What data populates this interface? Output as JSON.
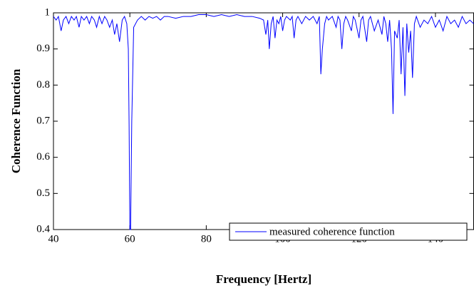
{
  "chart_data": {
    "type": "line",
    "xlabel": "Frequency [Hertz]",
    "ylabel": "Coherence Function",
    "xlim": [
      40,
      150
    ],
    "xticks": [
      40,
      60,
      80,
      100,
      120,
      140
    ],
    "ylim": [
      0.4,
      1
    ],
    "yticks": [
      0.4,
      0.5,
      0.6,
      0.7,
      0.8,
      0.9,
      1
    ],
    "grid": false,
    "legend": "lower right",
    "x": [
      40,
      40.7,
      41.3,
      42,
      42.6,
      43.3,
      44,
      44.7,
      45.4,
      46,
      46.7,
      47.3,
      48,
      48.7,
      49.4,
      50,
      50.7,
      51.3,
      52,
      52.7,
      53.4,
      54,
      54.7,
      55.4,
      56,
      56.6,
      57.3,
      58,
      58.6,
      59.2,
      59.6,
      59.8,
      60,
      60.2,
      60.5,
      61,
      62,
      63,
      64,
      65,
      66,
      67,
      68,
      69,
      70,
      72,
      74,
      76,
      78,
      80,
      82,
      84,
      86,
      88,
      90,
      92,
      94,
      95,
      95.6,
      96.1,
      96.5,
      97,
      97.5,
      98,
      98.5,
      99,
      99.5,
      100,
      100.5,
      101,
      102,
      102.5,
      103,
      103.5,
      104,
      105,
      106,
      107,
      108,
      109,
      109.6,
      110,
      110.4,
      111,
      111.5,
      112,
      113,
      114,
      114.5,
      115,
      115.5,
      116,
      116.5,
      117,
      118,
      118.5,
      119,
      120,
      120.5,
      121,
      122,
      122.5,
      123,
      124,
      125,
      126,
      126.5,
      127,
      127.5,
      128,
      128.5,
      128.9,
      129.3,
      130,
      130.5,
      131,
      131.5,
      132,
      132.5,
      133,
      133.5,
      134,
      134.5,
      135,
      136,
      137,
      138,
      139,
      140,
      141,
      142,
      143,
      144,
      145,
      146,
      147,
      148,
      149,
      150
    ],
    "series": [
      {
        "name": "measured coherence function",
        "color": "#0000ff",
        "values": [
          0.99,
          0.98,
          0.99,
          0.95,
          0.98,
          0.99,
          0.97,
          0.99,
          0.98,
          0.99,
          0.96,
          0.99,
          0.98,
          0.99,
          0.97,
          0.99,
          0.98,
          0.96,
          0.99,
          0.97,
          0.99,
          0.98,
          0.96,
          0.98,
          0.94,
          0.97,
          0.92,
          0.98,
          0.99,
          0.97,
          0.9,
          0.69,
          0.4,
          0.4,
          0.7,
          0.96,
          0.98,
          0.99,
          0.98,
          0.99,
          0.985,
          0.99,
          0.98,
          0.99,
          0.99,
          0.985,
          0.99,
          0.99,
          0.995,
          0.995,
          0.99,
          0.995,
          0.99,
          0.995,
          0.99,
          0.99,
          0.985,
          0.98,
          0.94,
          0.98,
          0.9,
          0.97,
          0.99,
          0.93,
          0.98,
          0.97,
          0.99,
          0.95,
          0.98,
          0.99,
          0.98,
          0.99,
          0.93,
          0.98,
          0.99,
          0.97,
          0.99,
          0.98,
          0.99,
          0.97,
          0.99,
          0.83,
          0.9,
          0.97,
          0.99,
          0.98,
          0.99,
          0.96,
          0.99,
          0.98,
          0.9,
          0.97,
          0.99,
          0.98,
          0.95,
          0.99,
          0.98,
          0.93,
          0.98,
          0.99,
          0.92,
          0.98,
          0.99,
          0.95,
          0.98,
          0.94,
          0.99,
          0.97,
          0.92,
          0.98,
          0.9,
          0.72,
          0.95,
          0.93,
          0.98,
          0.83,
          0.96,
          0.77,
          0.97,
          0.89,
          0.95,
          0.82,
          0.97,
          0.99,
          0.96,
          0.98,
          0.97,
          0.99,
          0.96,
          0.98,
          0.95,
          0.99,
          0.97,
          0.98,
          0.96,
          0.99,
          0.97,
          0.98,
          0.97
        ]
      }
    ]
  }
}
